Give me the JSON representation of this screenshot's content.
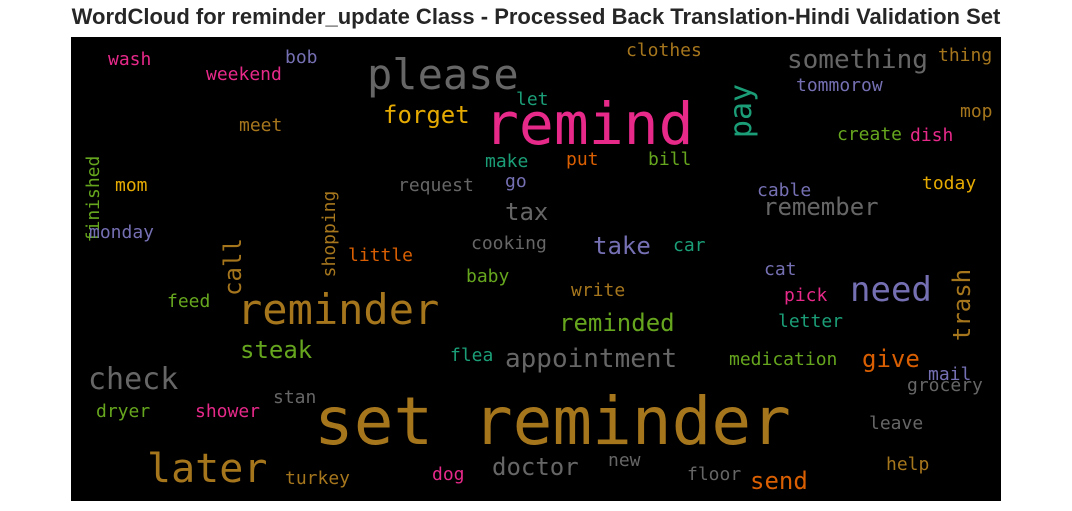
{
  "chart_data": {
    "type": "wordcloud",
    "title": "WordCloud for reminder_update Class - Processed Back Translation-Hindi Validation Set",
    "background": "#000000",
    "words": [
      {
        "text": "set reminder",
        "color": "#a6761d"
      },
      {
        "text": "remind",
        "color": "#e7298a"
      },
      {
        "text": "please",
        "color": "#666666"
      },
      {
        "text": "reminder",
        "color": "#a6761d"
      },
      {
        "text": "later",
        "color": "#a6761d"
      },
      {
        "text": "need",
        "color": "#7570b3"
      },
      {
        "text": "check",
        "color": "#666666"
      },
      {
        "text": "pay",
        "color": "#1b9e77"
      },
      {
        "text": "something",
        "color": "#666666"
      },
      {
        "text": "appointment",
        "color": "#666666"
      },
      {
        "text": "doctor",
        "color": "#666666"
      },
      {
        "text": "trash",
        "color": "#a6761d"
      },
      {
        "text": "remember",
        "color": "#666666"
      },
      {
        "text": "forget",
        "color": "#e6ab02"
      },
      {
        "text": "reminded",
        "color": "#66a61e"
      },
      {
        "text": "steak",
        "color": "#66a61e"
      },
      {
        "text": "call",
        "color": "#a6761d"
      },
      {
        "text": "take",
        "color": "#7570b3"
      },
      {
        "text": "tax",
        "color": "#666666"
      },
      {
        "text": "give",
        "color": "#d95f02"
      },
      {
        "text": "send",
        "color": "#d95f02"
      },
      {
        "text": "thing",
        "color": "#a6761d"
      },
      {
        "text": "clothes",
        "color": "#a6761d"
      },
      {
        "text": "tommorow",
        "color": "#7570b3"
      },
      {
        "text": "wash",
        "color": "#e7298a"
      },
      {
        "text": "weekend",
        "color": "#e7298a"
      },
      {
        "text": "bob",
        "color": "#7570b3"
      },
      {
        "text": "let",
        "color": "#1b9e77"
      },
      {
        "text": "mop",
        "color": "#a6761d"
      },
      {
        "text": "finished",
        "color": "#66a61e"
      },
      {
        "text": "meet",
        "color": "#a6761d"
      },
      {
        "text": "create",
        "color": "#66a61e"
      },
      {
        "text": "dish",
        "color": "#e7298a"
      },
      {
        "text": "make",
        "color": "#1b9e77"
      },
      {
        "text": "put",
        "color": "#d95f02"
      },
      {
        "text": "bill",
        "color": "#66a61e"
      },
      {
        "text": "shopping",
        "color": "#a6761d"
      },
      {
        "text": "mom",
        "color": "#e6ab02"
      },
      {
        "text": "request",
        "color": "#666666"
      },
      {
        "text": "go",
        "color": "#7570b3"
      },
      {
        "text": "cable",
        "color": "#7570b3"
      },
      {
        "text": "today",
        "color": "#e6ab02"
      },
      {
        "text": "monday",
        "color": "#7570b3"
      },
      {
        "text": "cooking",
        "color": "#666666"
      },
      {
        "text": "car",
        "color": "#1b9e77"
      },
      {
        "text": "little",
        "color": "#d95f02"
      },
      {
        "text": "baby",
        "color": "#66a61e"
      },
      {
        "text": "cat",
        "color": "#7570b3"
      },
      {
        "text": "feed",
        "color": "#66a61e"
      },
      {
        "text": "write",
        "color": "#a6761d"
      },
      {
        "text": "pick",
        "color": "#e7298a"
      },
      {
        "text": "letter",
        "color": "#1b9e77"
      },
      {
        "text": "flea",
        "color": "#1b9e77"
      },
      {
        "text": "medication",
        "color": "#66a61e"
      },
      {
        "text": "mail",
        "color": "#7570b3"
      },
      {
        "text": "grocery",
        "color": "#666666"
      },
      {
        "text": "stan",
        "color": "#666666"
      },
      {
        "text": "dryer",
        "color": "#66a61e"
      },
      {
        "text": "shower",
        "color": "#e7298a"
      },
      {
        "text": "leave",
        "color": "#666666"
      },
      {
        "text": "new",
        "color": "#666666"
      },
      {
        "text": "help",
        "color": "#a6761d"
      },
      {
        "text": "turkey",
        "color": "#a6761d"
      },
      {
        "text": "dog",
        "color": "#e7298a"
      },
      {
        "text": "floor",
        "color": "#666666"
      }
    ]
  }
}
